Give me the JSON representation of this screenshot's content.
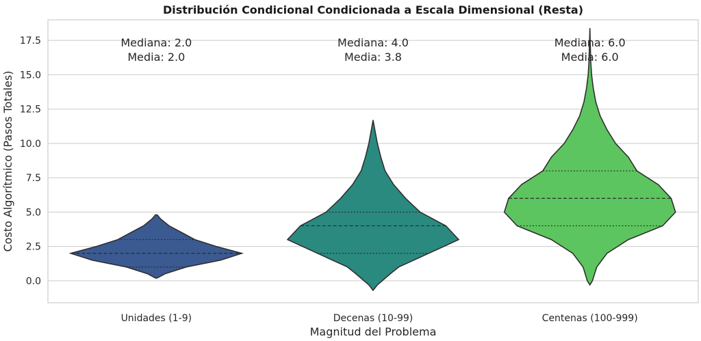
{
  "chart_data": {
    "type": "violin",
    "title": "Distribución Condicional Condicionada a Escala Dimensional (Resta)",
    "xlabel": "Magnitud del Problema",
    "ylabel": "Costo Algorítmico (Pasos Totales)",
    "ylim": [
      -1.6,
      19.0
    ],
    "yticks": [
      0.0,
      2.5,
      5.0,
      7.5,
      10.0,
      12.5,
      15.0,
      17.5
    ],
    "ytick_labels": [
      "0.0",
      "2.5",
      "5.0",
      "7.5",
      "10.0",
      "12.5",
      "15.0",
      "17.5"
    ],
    "grid": true,
    "categories": [
      "Unidades (1-9)",
      "Decenas (10-99)",
      "Centenas (100-999)"
    ],
    "colors": [
      "#3b5a91",
      "#2a8a80",
      "#5cc55f"
    ],
    "violins": [
      {
        "category": "Unidades (1-9)",
        "profile": [
          [
            0.2,
            0.01
          ],
          [
            0.5,
            0.1
          ],
          [
            1.0,
            0.35
          ],
          [
            1.5,
            0.75
          ],
          [
            2.0,
            1.0
          ],
          [
            2.5,
            0.7
          ],
          [
            3.0,
            0.45
          ],
          [
            3.5,
            0.3
          ],
          [
            4.0,
            0.15
          ],
          [
            4.5,
            0.05
          ],
          [
            4.8,
            0.01
          ]
        ],
        "quartiles": [
          1.0,
          2.0,
          3.0
        ],
        "median_label": "Mediana: 2.0",
        "mean_label": "Media: 2.0"
      },
      {
        "category": "Decenas (10-99)",
        "profile": [
          [
            -0.7,
            0.0
          ],
          [
            -0.3,
            0.05
          ],
          [
            0.5,
            0.2
          ],
          [
            1.0,
            0.3
          ],
          [
            2.0,
            0.65
          ],
          [
            3.0,
            1.0
          ],
          [
            4.0,
            0.85
          ],
          [
            5.0,
            0.55
          ],
          [
            6.0,
            0.38
          ],
          [
            7.0,
            0.24
          ],
          [
            8.0,
            0.14
          ],
          [
            9.0,
            0.09
          ],
          [
            10.0,
            0.05
          ],
          [
            11.0,
            0.02
          ],
          [
            11.7,
            0.0
          ]
        ],
        "quartiles": [
          2.0,
          4.0,
          5.0
        ],
        "median_label": "Mediana: 4.0",
        "mean_label": "Media: 3.8"
      },
      {
        "category": "Centenas (100-999)",
        "profile": [
          [
            -0.3,
            0.0
          ],
          [
            0.0,
            0.03
          ],
          [
            1.0,
            0.08
          ],
          [
            2.0,
            0.2
          ],
          [
            3.0,
            0.45
          ],
          [
            4.0,
            0.85
          ],
          [
            5.0,
            1.0
          ],
          [
            6.0,
            0.95
          ],
          [
            7.0,
            0.8
          ],
          [
            8.0,
            0.55
          ],
          [
            9.0,
            0.45
          ],
          [
            10.0,
            0.3
          ],
          [
            11.0,
            0.2
          ],
          [
            12.0,
            0.12
          ],
          [
            13.0,
            0.07
          ],
          [
            14.0,
            0.04
          ],
          [
            15.0,
            0.02
          ],
          [
            16.0,
            0.01
          ],
          [
            18.4,
            0.0
          ]
        ],
        "quartiles": [
          4.0,
          6.0,
          8.0
        ],
        "median_label": "Mediana: 6.0",
        "mean_label": "Media: 6.0"
      }
    ]
  }
}
